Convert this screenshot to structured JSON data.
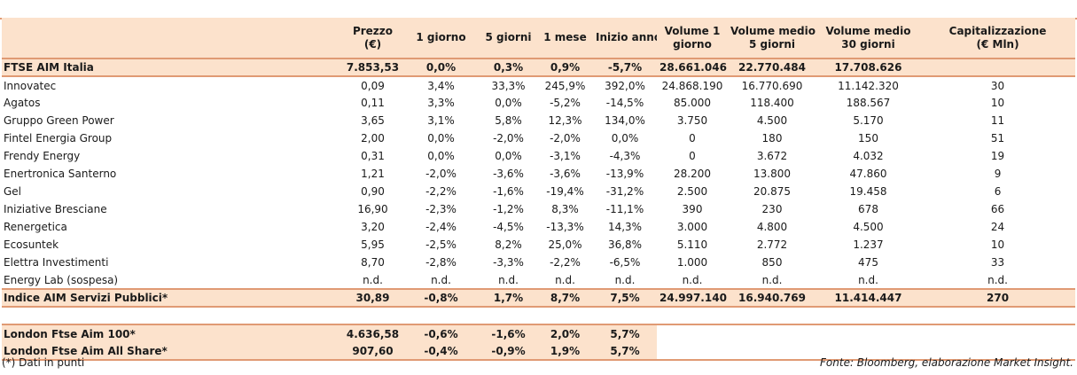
{
  "headers": [
    "",
    "Prezzo (€)",
    "1 giorno",
    "5 giorni",
    "1 mese",
    "Inizio anno",
    "Volume 1 giorno",
    "Volume medio 5 giorni",
    "Volume medio 30 giorni",
    "Capitalizzazione (€ Mln)"
  ],
  "header_lines": [
    [
      "",
      ""
    ],
    [
      "Prezzo",
      "(€)"
    ],
    [
      "1 giorno",
      ""
    ],
    [
      "5 giorni",
      ""
    ],
    [
      "1 mese",
      ""
    ],
    [
      "Inizio anno",
      ""
    ],
    [
      "Volume 1",
      "giorno"
    ],
    [
      "Volume medio",
      "5 giorni"
    ],
    [
      "Volume medio",
      "30 giorni"
    ],
    [
      "Capitalizzazione",
      "(€ Mln)"
    ]
  ],
  "index_row": [
    "FTSE AIM Italia",
    "7.853,53",
    "0,0%",
    "0,3%",
    "0,9%",
    "-5,7%",
    "28.661.046",
    "22.770.484",
    "17.708.626",
    ""
  ],
  "rows": [
    [
      "Innovatec",
      "0,09",
      "3,4%",
      "33,3%",
      "245,9%",
      "392,0%",
      "24.868.190",
      "16.770.690",
      "11.142.320",
      "30"
    ],
    [
      "Agatos",
      "0,11",
      "3,3%",
      "0,0%",
      "-5,2%",
      "-14,5%",
      "85.000",
      "118.400",
      "188.567",
      "10"
    ],
    [
      "Gruppo Green Power",
      "3,65",
      "3,1%",
      "5,8%",
      "12,3%",
      "134,0%",
      "3.750",
      "4.500",
      "5.170",
      "11"
    ],
    [
      "Fintel Energia Group",
      "2,00",
      "0,0%",
      "-2,0%",
      "-2,0%",
      "0,0%",
      "0",
      "180",
      "150",
      "51"
    ],
    [
      "Frendy Energy",
      "0,31",
      "0,0%",
      "0,0%",
      "-3,1%",
      "-4,3%",
      "0",
      "3.672",
      "4.032",
      "19"
    ],
    [
      "Enertronica Santerno",
      "1,21",
      "-2,0%",
      "-3,6%",
      "-3,6%",
      "-13,9%",
      "28.200",
      "13.800",
      "47.860",
      "9"
    ],
    [
      "Gel",
      "0,90",
      "-2,2%",
      "-1,6%",
      "-19,4%",
      "-31,2%",
      "2.500",
      "20.875",
      "19.458",
      "6"
    ],
    [
      "Iniziative Bresciane",
      "16,90",
      "-2,3%",
      "-1,2%",
      "8,3%",
      "-11,1%",
      "390",
      "230",
      "678",
      "66"
    ],
    [
      "Renergetica",
      "3,20",
      "-2,4%",
      "-4,5%",
      "-13,3%",
      "14,3%",
      "3.000",
      "4.800",
      "4.500",
      "24"
    ],
    [
      "Ecosuntek",
      "5,95",
      "-2,5%",
      "8,2%",
      "25,0%",
      "36,8%",
      "5.110",
      "2.772",
      "1.237",
      "10"
    ],
    [
      "Elettra Investimenti",
      "8,70",
      "-2,8%",
      "-3,3%",
      "-2,2%",
      "-6,5%",
      "1.000",
      "850",
      "475",
      "33"
    ],
    [
      "Energy Lab (sospesa)",
      "n.d.",
      "n.d.",
      "n.d.",
      "n.d.",
      "n.d.",
      "n.d.",
      "n.d.",
      "n.d.",
      "n.d."
    ]
  ],
  "sector_row": [
    "Indice AIM Servizi Pubblici*",
    "30,89",
    "-0,8%",
    "1,7%",
    "8,7%",
    "7,5%",
    "24.997.140",
    "16.940.769",
    "11.414.447",
    "270"
  ],
  "compare_rows": [
    [
      "London Ftse Aim 100*",
      "4.636,58",
      "-0,6%",
      "-1,6%",
      "2,0%",
      "5,7%"
    ],
    [
      "London Ftse Aim All Share*",
      "907,60",
      "-0,4%",
      "-0,9%",
      "1,9%",
      "5,7%"
    ]
  ],
  "footer": {
    "note": "(*) Dati in punti",
    "source": "Fonte: Bloomberg, elaborazione Market Insight."
  },
  "colors": {
    "band": "#fce2cc",
    "rule": "#e09a74"
  }
}
